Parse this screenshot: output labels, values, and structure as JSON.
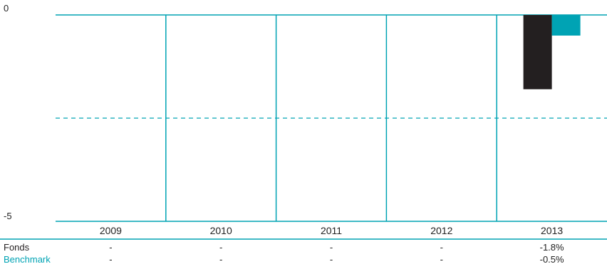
{
  "chart_data": {
    "type": "bar",
    "categories": [
      "2009",
      "2010",
      "2011",
      "2012",
      "2013"
    ],
    "series": [
      {
        "name": "Fonds",
        "values": [
          null,
          null,
          null,
          null,
          -1.8
        ],
        "labels": [
          "-",
          "-",
          "-",
          "-",
          "-1.8%"
        ],
        "color": "#231f20"
      },
      {
        "name": "Benchmark",
        "values": [
          null,
          null,
          null,
          null,
          -0.5
        ],
        "labels": [
          "-",
          "-",
          "-",
          "-",
          "-0.5%"
        ],
        "color": "#00a3b4"
      }
    ],
    "yticks": [
      "0",
      "-5"
    ],
    "ylim": [
      -5,
      0
    ],
    "grid": true,
    "legend": "table-below"
  },
  "colors": {
    "grid": "#00a3b4",
    "axis": "#00a3b4",
    "benchmark_label": "#00a3b4",
    "fonds_label": "#231f20"
  }
}
